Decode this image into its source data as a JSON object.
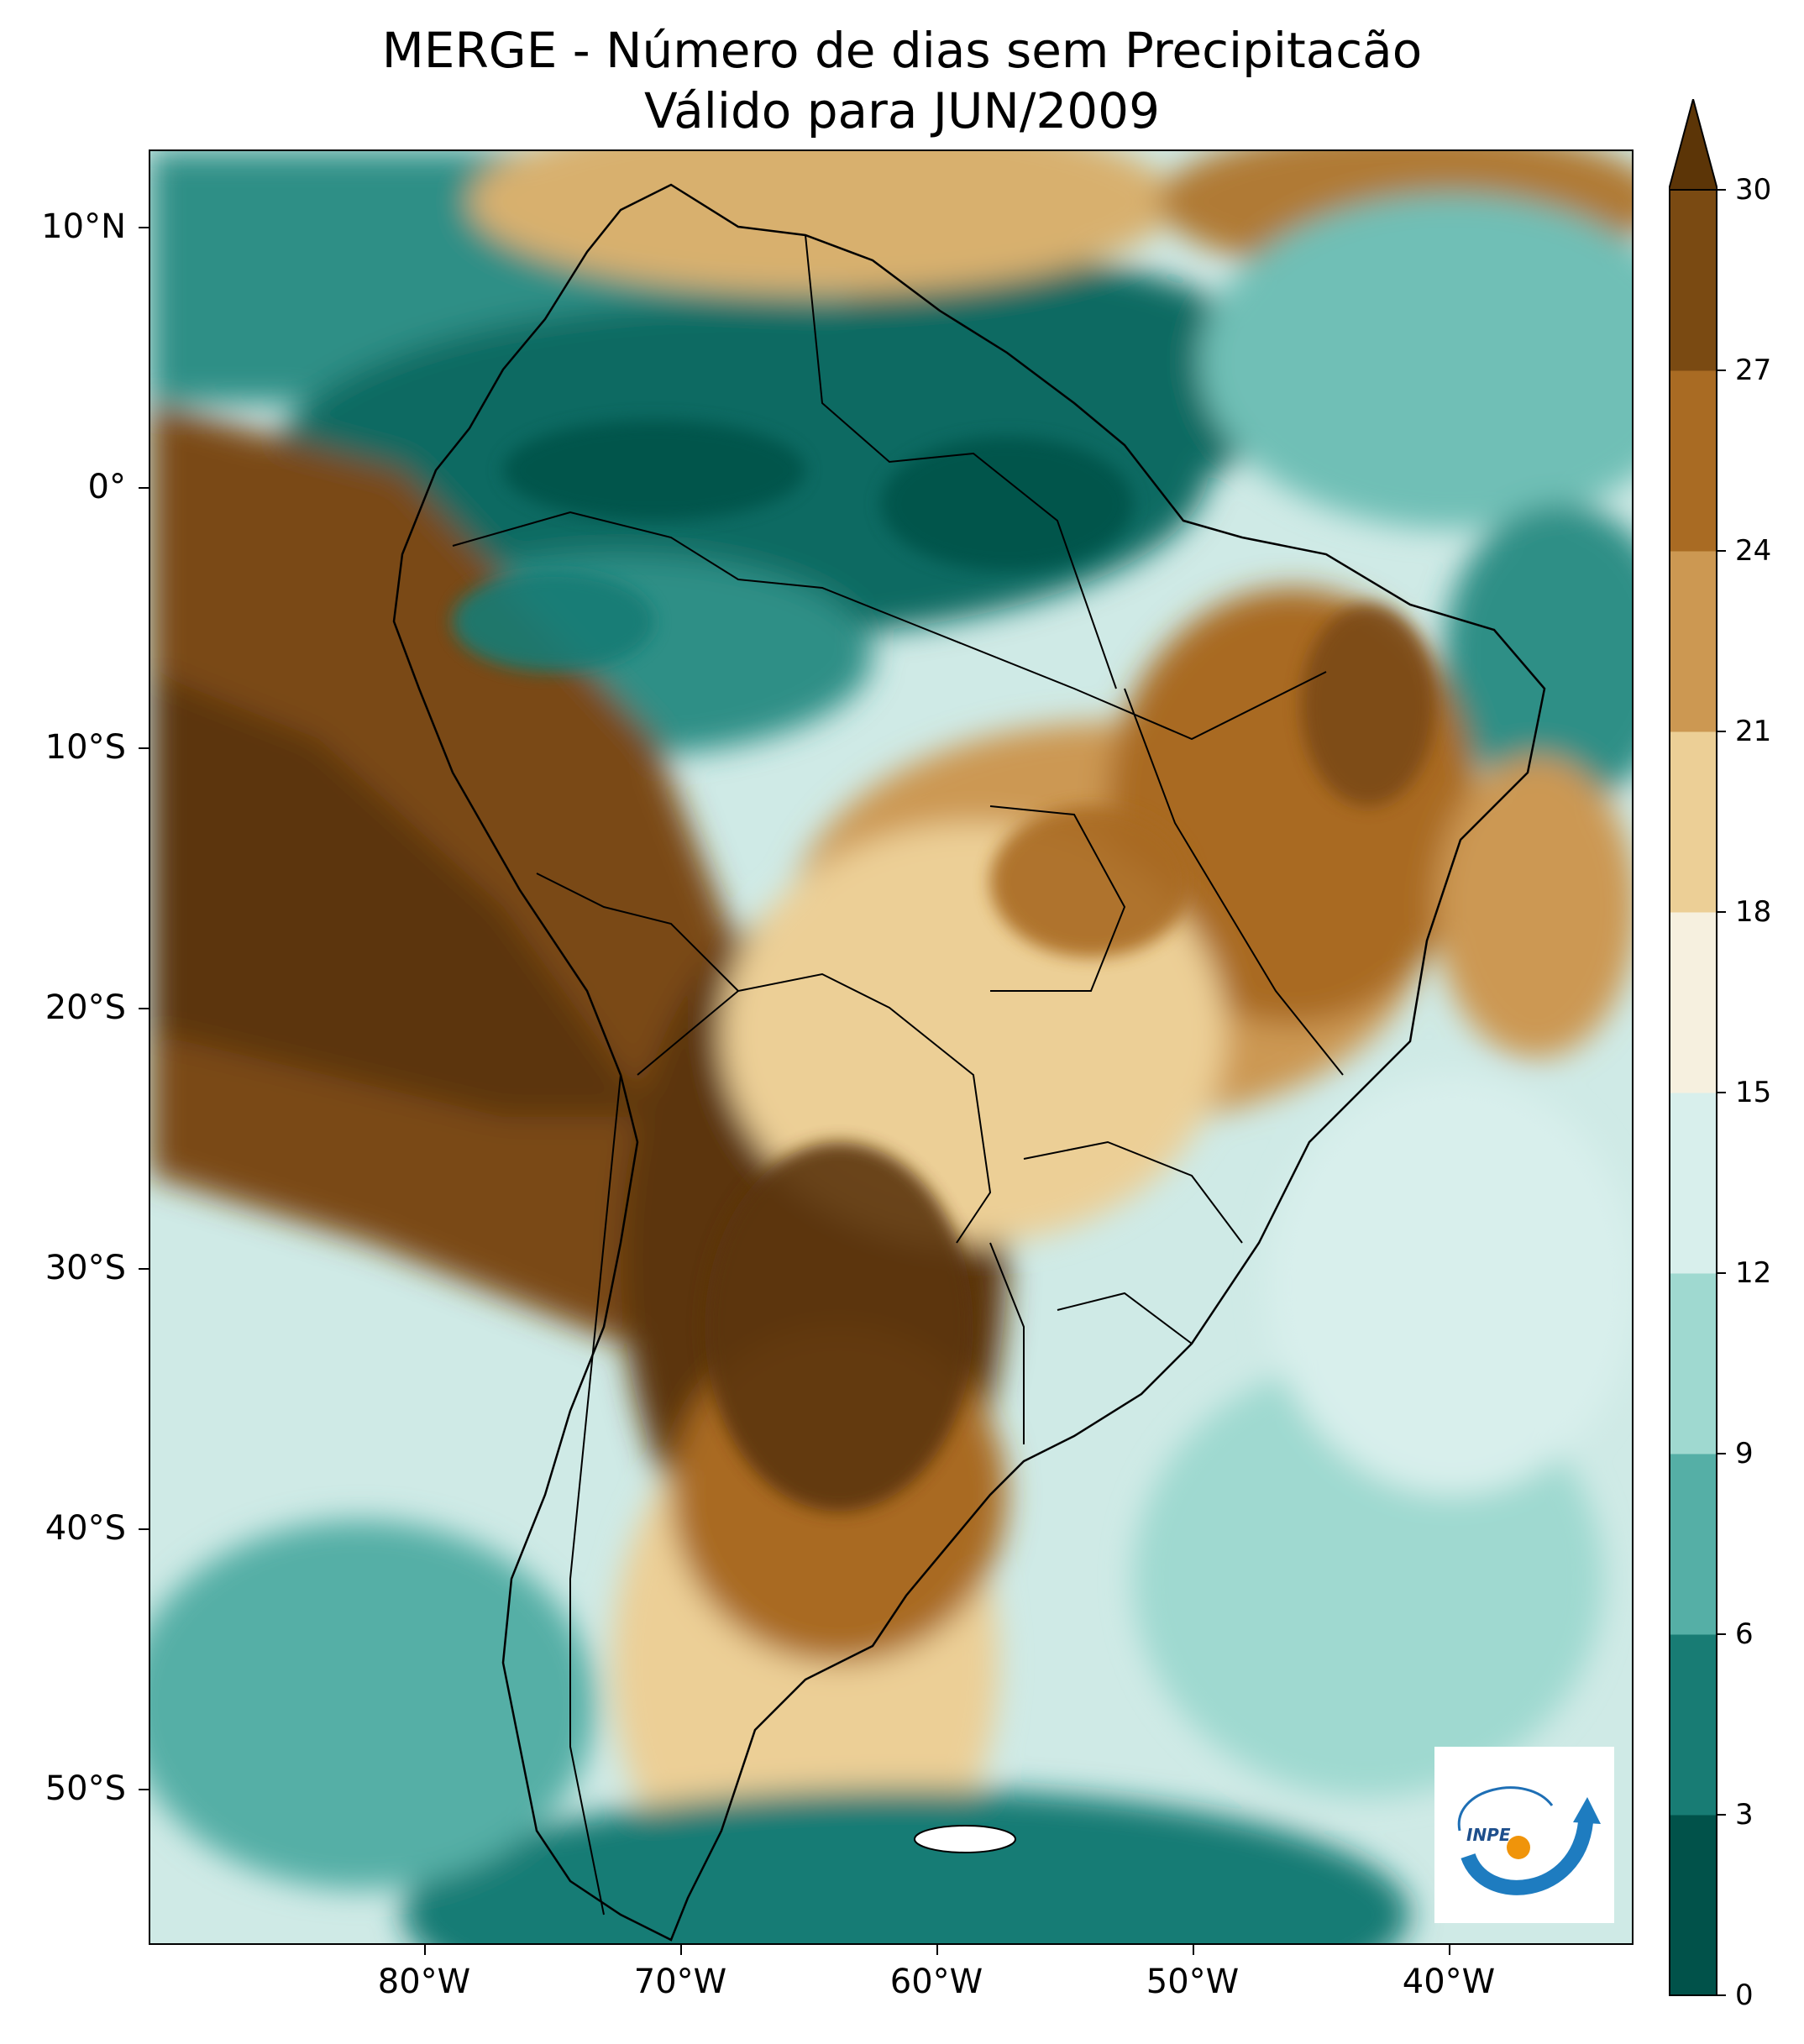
{
  "title": {
    "line1": "MERGE - Número de dias sem Precipitacão",
    "line2": "Válido para JUN/2009"
  },
  "map": {
    "lat_labels": [
      "10°N",
      "0°",
      "10°S",
      "20°S",
      "30°S",
      "40°S",
      "50°S"
    ],
    "lon_labels": [
      "80°W",
      "70°W",
      "60°W",
      "50°W",
      "40°W"
    ],
    "extent": {
      "lon_min": -89.5,
      "lon_max": -31.5,
      "lat_min": -56,
      "lat_max": 13
    }
  },
  "colorbar": {
    "ticks": [
      "0",
      "3",
      "6",
      "9",
      "12",
      "15",
      "18",
      "21",
      "24",
      "27",
      "30"
    ],
    "colors": [
      "#01524a",
      "#187c74",
      "#55afa6",
      "#9fd9d0",
      "#d8efec",
      "#f6f0df",
      "#eccf96",
      "#cc9852",
      "#a96b23",
      "#7a4a12"
    ],
    "extend_color": "#5c3507"
  },
  "logo": {
    "text": "INPE"
  }
}
